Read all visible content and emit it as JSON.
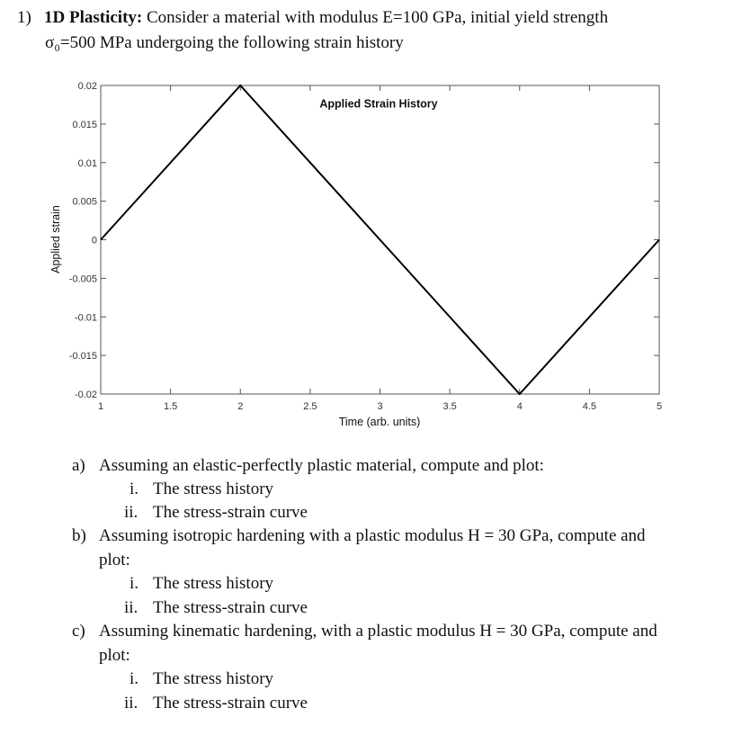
{
  "question": {
    "number": "1)",
    "title": "1D Plasticity:",
    "text_line1": " Consider a material with modulus E=100 GPa, initial yield strength",
    "text_line2": "σ₀=500 MPa undergoing the following strain history"
  },
  "chart_data": {
    "type": "line",
    "title": "Applied Strain History",
    "xlabel": "Time (arb. units)",
    "ylabel": "Applied strain",
    "xlim": [
      1,
      5
    ],
    "ylim": [
      -0.02,
      0.02
    ],
    "xticks": [
      "1",
      "1.5",
      "2",
      "2.5",
      "3",
      "3.5",
      "4",
      "4.5",
      "5"
    ],
    "yticks": [
      "0.02",
      "0.015",
      "0.01",
      "0.005",
      "0",
      "-0.005",
      "-0.01",
      "-0.015",
      "-0.02"
    ],
    "grid": false,
    "series": [
      {
        "x": [
          1,
          2,
          4,
          5
        ],
        "y": [
          0,
          0.02,
          -0.02,
          0
        ]
      }
    ],
    "colors": {
      "line": "#000000",
      "axes": "#555555"
    }
  },
  "parts": [
    {
      "label": "a)",
      "text": "Assuming an elastic-perfectly plastic material, compute and plot:",
      "sub": [
        {
          "label": "i.",
          "text": "The stress history"
        },
        {
          "label": "ii.",
          "text": "The stress-strain curve"
        }
      ]
    },
    {
      "label": "b)",
      "text_line1": "Assuming isotropic hardening with a plastic modulus H = 30 GPa, compute and",
      "text_line2": "plot:",
      "sub": [
        {
          "label": "i.",
          "text": "The stress history"
        },
        {
          "label": "ii.",
          "text": "The stress-strain curve"
        }
      ]
    },
    {
      "label": "c)",
      "text_line1": "Assuming kinematic hardening, with a plastic modulus H = 30 GPa, compute and",
      "text_line2": "plot:",
      "sub": [
        {
          "label": "i.",
          "text": "The stress history"
        },
        {
          "label": "ii.",
          "text": "The stress-strain curve"
        }
      ]
    }
  ]
}
